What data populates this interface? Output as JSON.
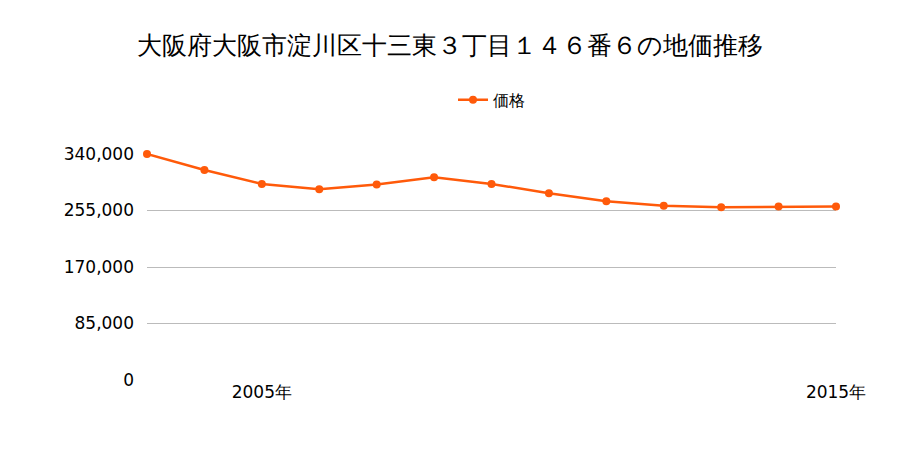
{
  "chart_data": {
    "type": "line",
    "title": "大阪府大阪市淀川区十三東３丁目１４６番６の地価推移",
    "categories": [
      null,
      null,
      "2005年",
      null,
      null,
      null,
      null,
      null,
      null,
      null,
      null,
      null,
      "2015年"
    ],
    "series": [
      {
        "name": "価格",
        "color": "#ff5a0a",
        "marker": "circle",
        "line_style": "solid",
        "values": [
          340000,
          316000,
          295000,
          287000,
          294000,
          305000,
          295000,
          281000,
          269000,
          262000,
          260000,
          261000,
          261000
        ]
      }
    ],
    "ylim": [
      0,
      340000
    ],
    "yticks": [
      0,
      {
        "value": 85000,
        "label": "85,000"
      },
      {
        "value": 170000,
        "label": "170,000"
      },
      {
        "value": 255000,
        "label": "255,000"
      },
      {
        "value": 340000,
        "label": "340,000"
      }
    ],
    "grid": true,
    "legend": "top"
  }
}
